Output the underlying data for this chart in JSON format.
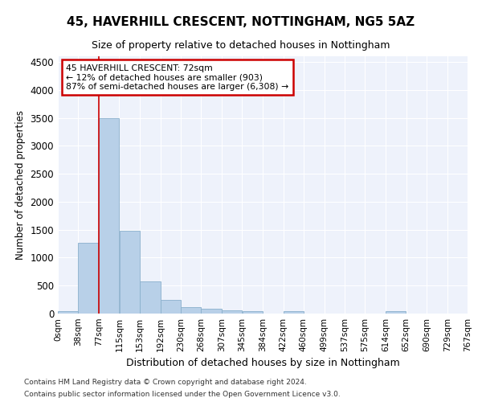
{
  "title": "45, HAVERHILL CRESCENT, NOTTINGHAM, NG5 5AZ",
  "subtitle": "Size of property relative to detached houses in Nottingham",
  "xlabel": "Distribution of detached houses by size in Nottingham",
  "ylabel": "Number of detached properties",
  "bar_color": "#b8d0e8",
  "bar_edgecolor": "#8ab0cc",
  "background_color": "#eef2fb",
  "grid_color": "#ffffff",
  "annotation_box_color": "#cc0000",
  "annotation_line1": "45 HAVERHILL CRESCENT: 72sqm",
  "annotation_line2": "← 12% of detached houses are smaller (903)",
  "annotation_line3": "87% of semi-detached houses are larger (6,308) →",
  "vline_x": 77,
  "vline_color": "#cc0000",
  "bin_edges": [
    0,
    38,
    77,
    115,
    153,
    192,
    230,
    268,
    307,
    345,
    384,
    422,
    460,
    499,
    537,
    575,
    614,
    652,
    690,
    729,
    767
  ],
  "bar_heights": [
    40,
    1270,
    3500,
    1480,
    580,
    240,
    115,
    85,
    55,
    45,
    0,
    50,
    0,
    0,
    0,
    0,
    50,
    0,
    0,
    0
  ],
  "ylim": [
    0,
    4600
  ],
  "yticks": [
    0,
    500,
    1000,
    1500,
    2000,
    2500,
    3000,
    3500,
    4000,
    4500
  ],
  "footnote1": "Contains HM Land Registry data © Crown copyright and database right 2024.",
  "footnote2": "Contains public sector information licensed under the Open Government Licence v3.0."
}
